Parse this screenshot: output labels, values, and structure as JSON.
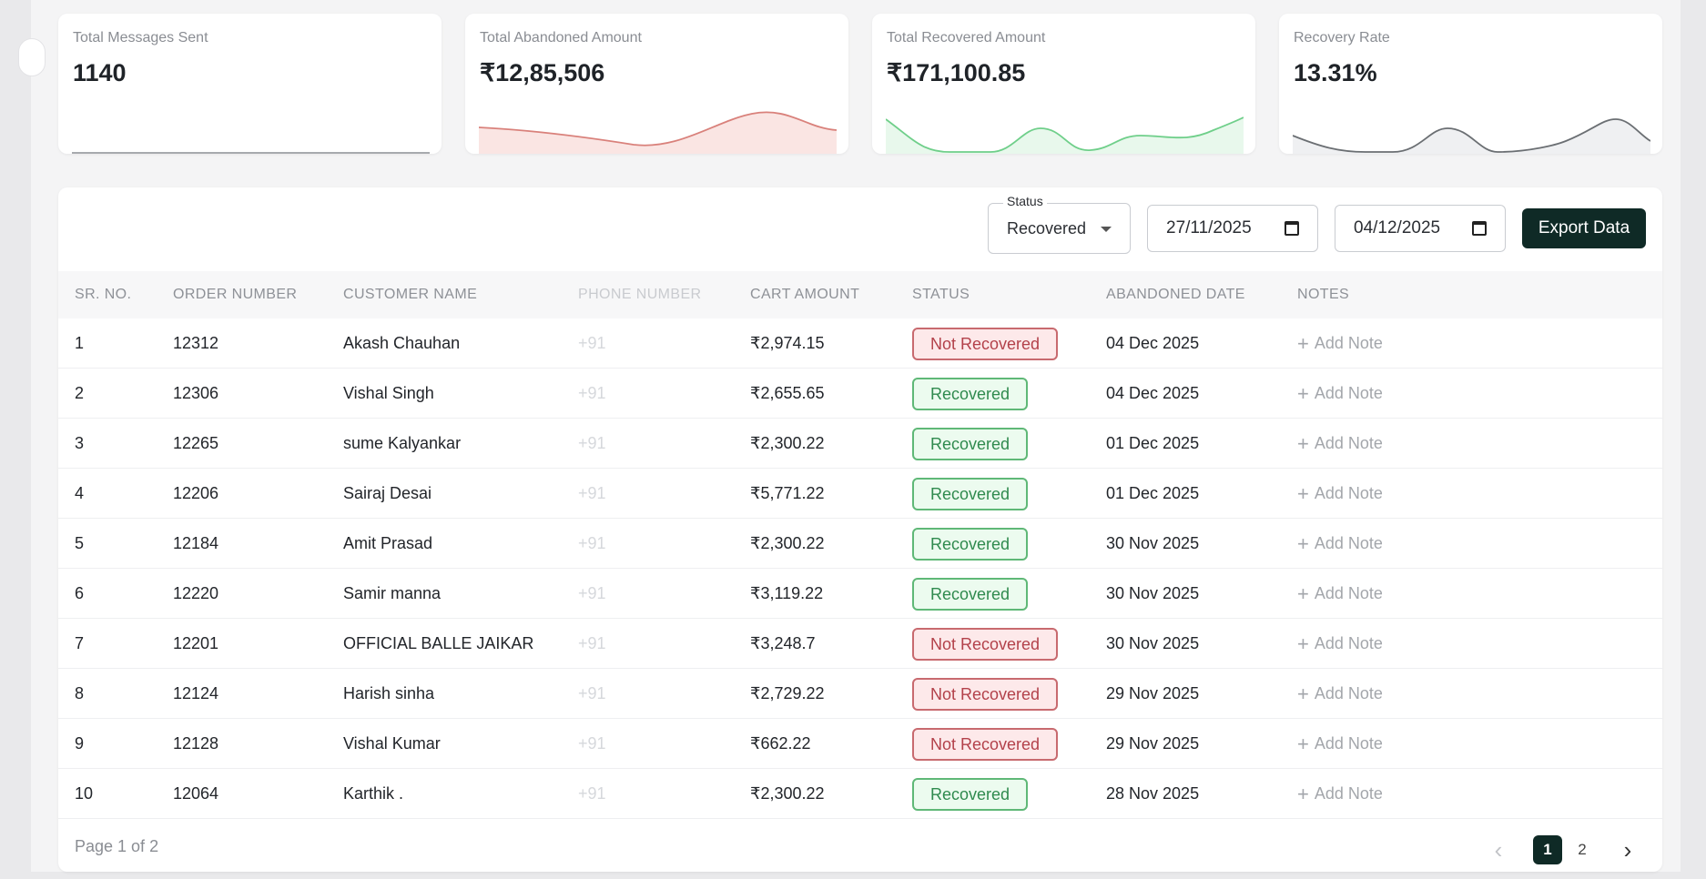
{
  "stats": [
    {
      "label": "Total Messages Sent",
      "value": "1140"
    },
    {
      "label": "Total Abandoned Amount",
      "value": "₹12,85,506"
    },
    {
      "label": "Total Recovered Amount",
      "value": "₹171,100.85"
    },
    {
      "label": "Recovery Rate",
      "value": "13.31%"
    }
  ],
  "colors": {
    "accent": "#0f2a26",
    "abandoned_line": "#d9817b",
    "recovered_line": "#6fcf8a",
    "rate_line": "#6b6f73",
    "badge_recovered": "#5fb877",
    "badge_not_recovered": "#c86a6f"
  },
  "filters": {
    "status_label": "Status",
    "status_value": "Recovered",
    "start_date": "27/11/2025",
    "end_date": "04/12/2025",
    "export_label": "Export Data"
  },
  "table": {
    "columns": [
      "Sr. No.",
      "Order Number",
      "Customer Name",
      "Phone Number",
      "Cart Amount",
      "Status",
      "Abandoned Date",
      "Notes"
    ],
    "add_note_label": "Add Note",
    "rows": [
      {
        "sr": "1",
        "order": "12312",
        "name": "Akash Chauhan",
        "phone": "+91",
        "amount": "₹2,974.15",
        "status": "Not Recovered",
        "date": "04 Dec 2025"
      },
      {
        "sr": "2",
        "order": "12306",
        "name": "Vishal Singh",
        "phone": "+91",
        "amount": "₹2,655.65",
        "status": "Recovered",
        "date": "04 Dec 2025"
      },
      {
        "sr": "3",
        "order": "12265",
        "name": "sume Kalyankar",
        "phone": "+91",
        "amount": "₹2,300.22",
        "status": "Recovered",
        "date": "01 Dec 2025"
      },
      {
        "sr": "4",
        "order": "12206",
        "name": "Sairaj Desai",
        "phone": "+91",
        "amount": "₹5,771.22",
        "status": "Recovered",
        "date": "01 Dec 2025"
      },
      {
        "sr": "5",
        "order": "12184",
        "name": "Amit Prasad",
        "phone": "+91",
        "amount": "₹2,300.22",
        "status": "Recovered",
        "date": "30 Nov 2025"
      },
      {
        "sr": "6",
        "order": "12220",
        "name": "Samir manna",
        "phone": "+91",
        "amount": "₹3,119.22",
        "status": "Recovered",
        "date": "30 Nov 2025"
      },
      {
        "sr": "7",
        "order": "12201",
        "name": "OFFICIAL BALLE JAIKAR",
        "phone": "+91",
        "amount": "₹3,248.7",
        "status": "Not Recovered",
        "date": "30 Nov 2025"
      },
      {
        "sr": "8",
        "order": "12124",
        "name": "Harish sinha",
        "phone": "+91",
        "amount": "₹2,729.22",
        "status": "Not Recovered",
        "date": "29 Nov 2025"
      },
      {
        "sr": "9",
        "order": "12128",
        "name": "Vishal Kumar",
        "phone": "+91",
        "amount": "₹662.22",
        "status": "Not Recovered",
        "date": "29 Nov 2025"
      },
      {
        "sr": "10",
        "order": "12064",
        "name": "Karthik .",
        "phone": "+91",
        "amount": "₹2,300.22",
        "status": "Recovered",
        "date": "28 Nov 2025"
      }
    ]
  },
  "pagination": {
    "label": "Page 1 of 2",
    "pages": [
      "1",
      "2"
    ],
    "current": "1"
  }
}
